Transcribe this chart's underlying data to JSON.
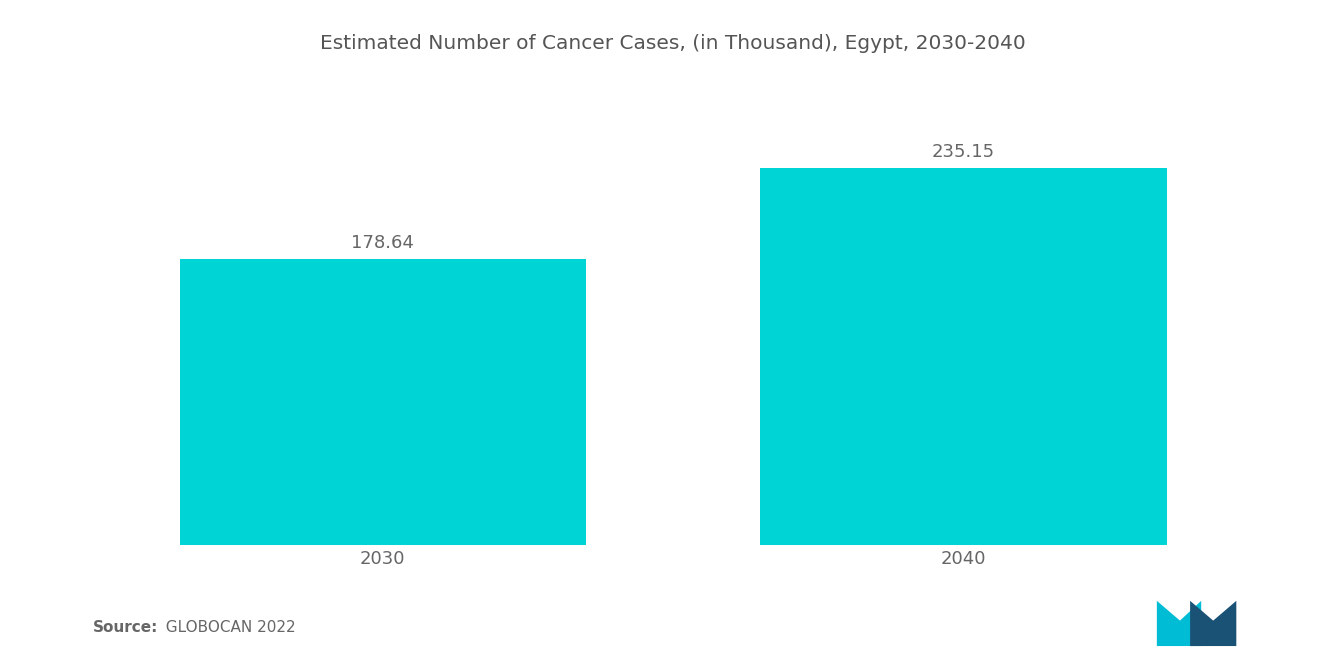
{
  "title": "Estimated Number of Cancer Cases, (in Thousand), Egypt, 2030-2040",
  "categories": [
    "2030",
    "2040"
  ],
  "values": [
    178.64,
    235.15
  ],
  "bar_color": "#00D4D4",
  "background_color": "#ffffff",
  "title_fontsize": 14.5,
  "label_fontsize": 13,
  "value_fontsize": 13,
  "source_bold": "Source:",
  "source_rest": "  GLOBOCAN 2022",
  "ylim": [
    0,
    290
  ],
  "bar_width": 0.35,
  "bar_positions": [
    0.25,
    0.75
  ]
}
